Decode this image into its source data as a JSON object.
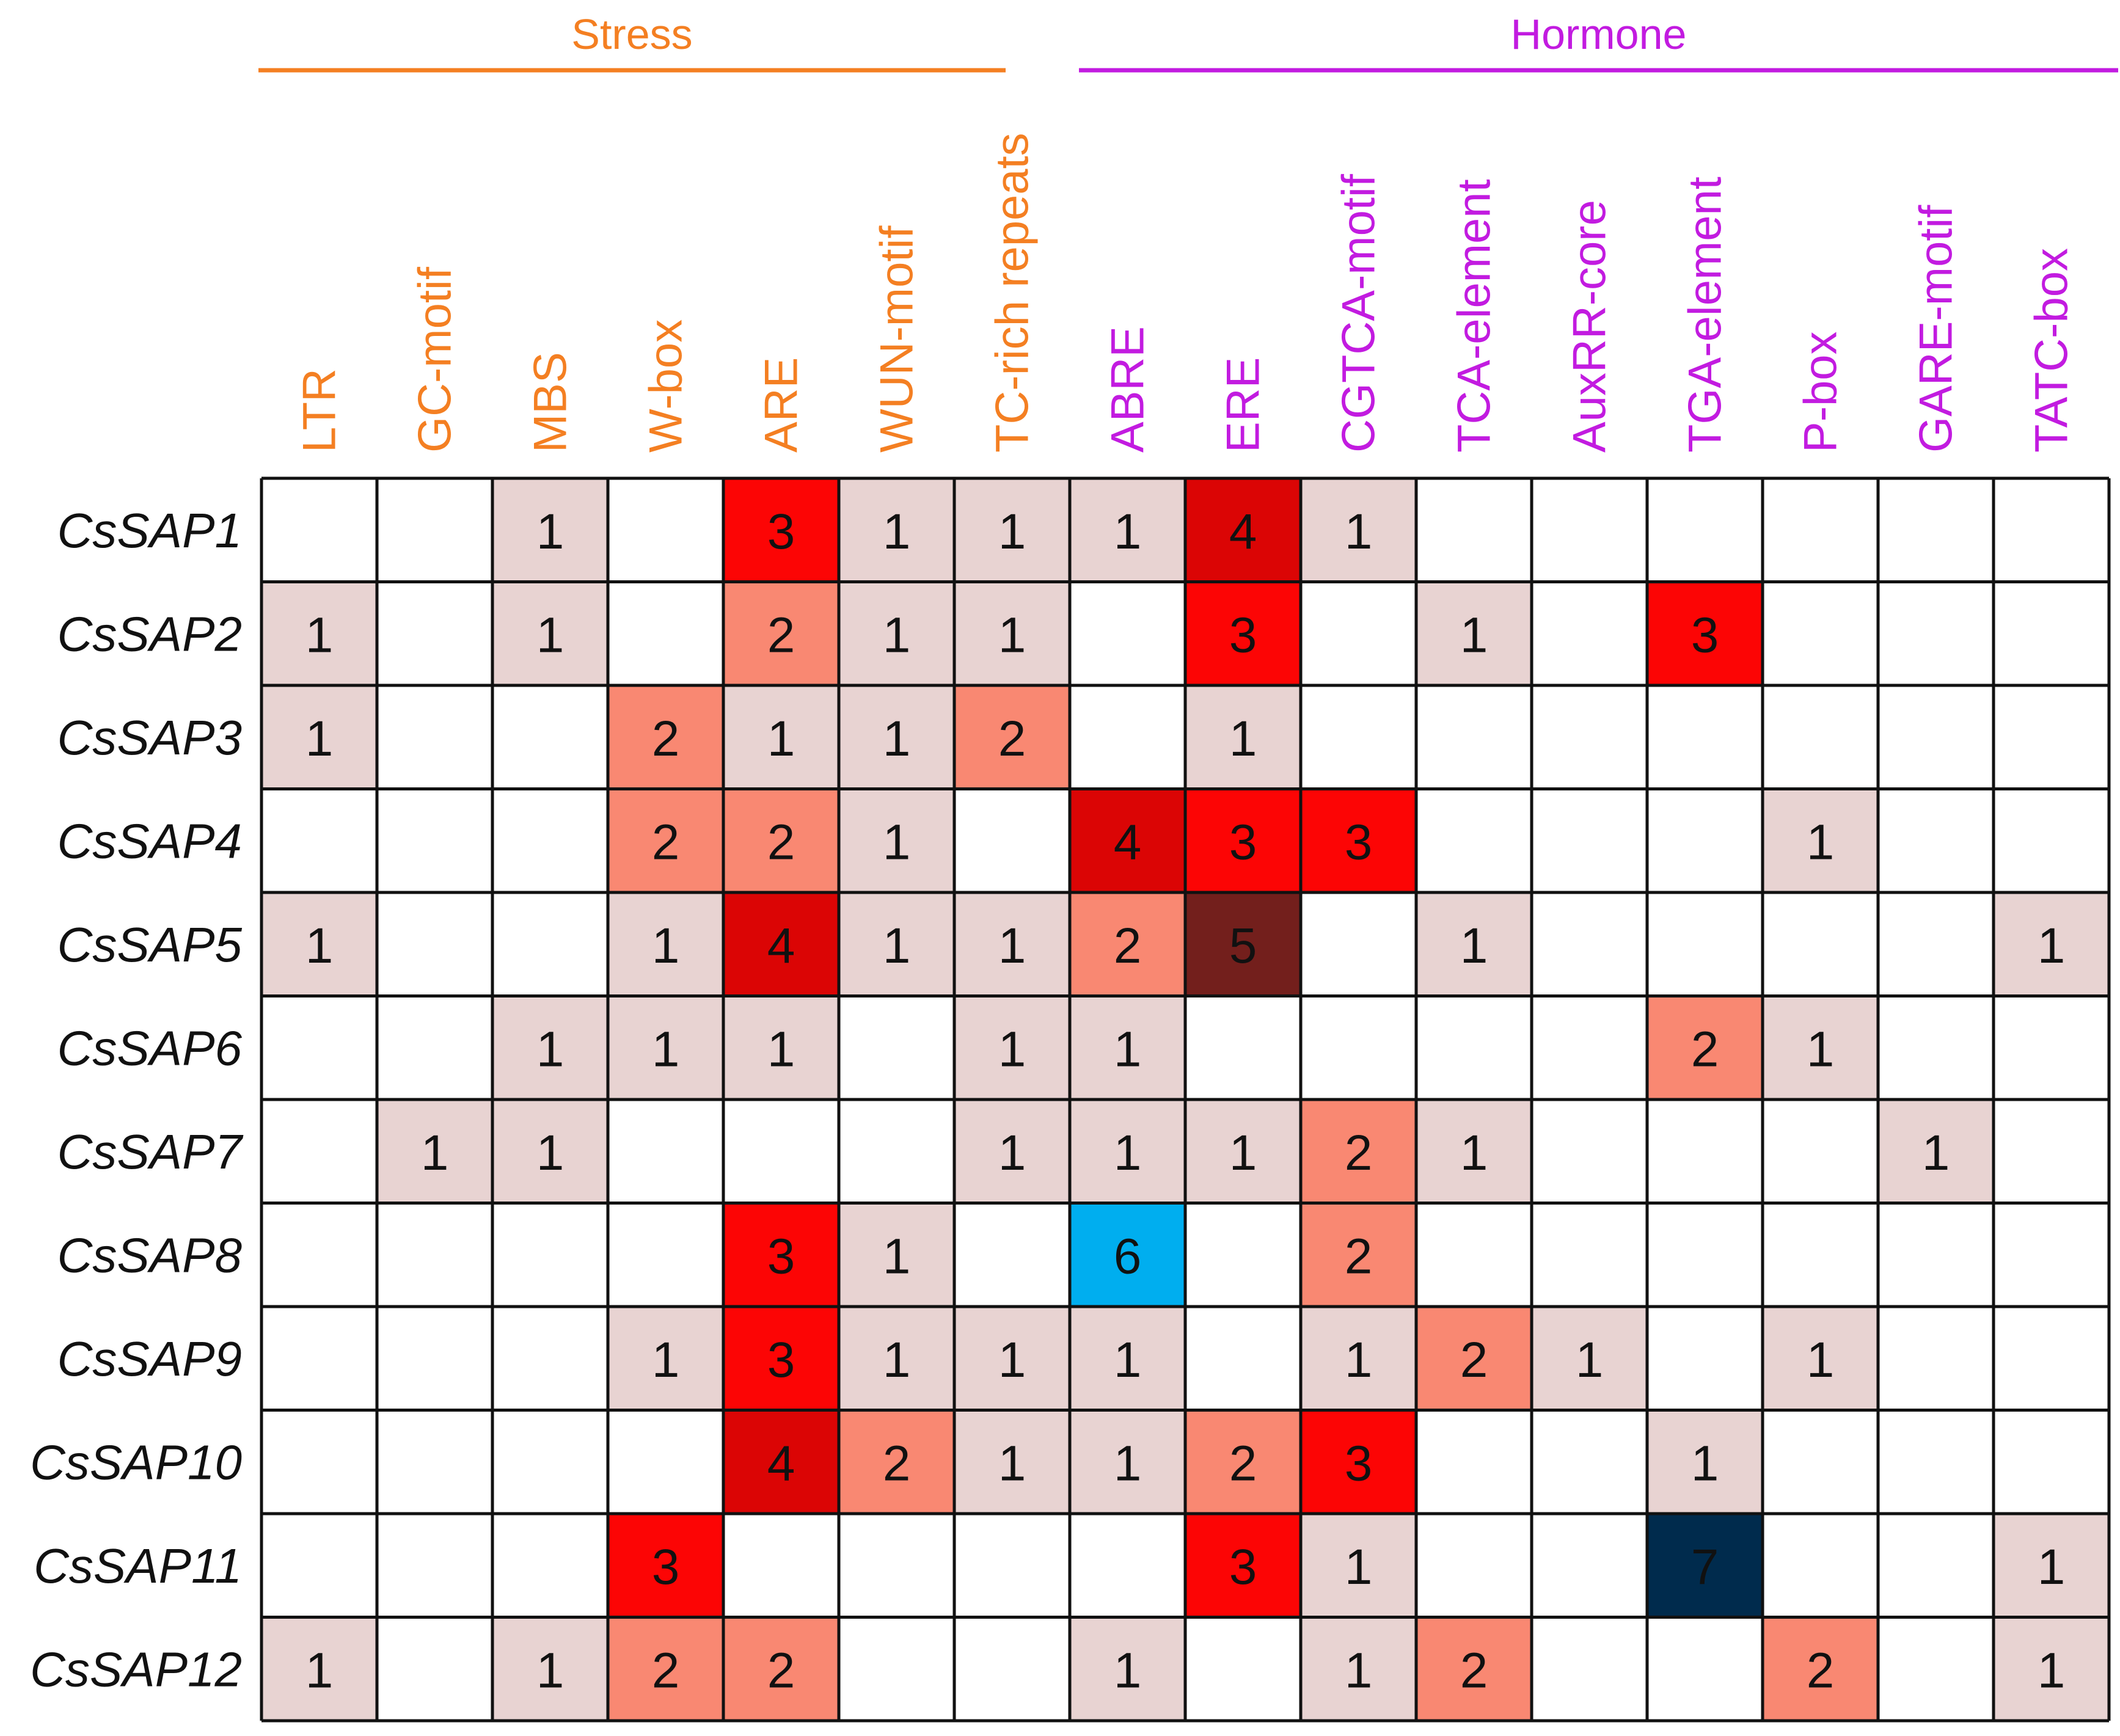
{
  "chart_data": {
    "type": "heatmap",
    "groups": [
      {
        "name": "Stress",
        "color": "#F47F22",
        "columns": [
          "LTR",
          "GC-motif",
          "MBS",
          "W-box",
          "ARE",
          "WUN-motif",
          "TC-rich repeats"
        ]
      },
      {
        "name": "Hormone",
        "color": "#C21BE0",
        "columns": [
          "ABRE",
          "ERE",
          "CGTCA-motif",
          "TCA-element",
          "AuxRR-core",
          "TGA-element",
          "P-box",
          "GARE-motif",
          "TATC-box"
        ]
      }
    ],
    "columns": [
      "LTR",
      "GC-motif",
      "MBS",
      "W-box",
      "ARE",
      "WUN-motif",
      "TC-rich repeats",
      "ABRE",
      "ERE",
      "CGTCA-motif",
      "TCA-element",
      "AuxRR-core",
      "TGA-element",
      "P-box",
      "GARE-motif",
      "TATC-box"
    ],
    "rows": [
      "CsSAP1",
      "CsSAP2",
      "CsSAP3",
      "CsSAP4",
      "CsSAP5",
      "CsSAP6",
      "CsSAP7",
      "CsSAP8",
      "CsSAP9",
      "CsSAP10",
      "CsSAP11",
      "CsSAP12"
    ],
    "values": [
      [
        0,
        0,
        1,
        0,
        3,
        1,
        1,
        1,
        4,
        1,
        0,
        0,
        0,
        0,
        0,
        0
      ],
      [
        1,
        0,
        1,
        0,
        2,
        1,
        1,
        0,
        3,
        0,
        1,
        0,
        3,
        0,
        0,
        0
      ],
      [
        1,
        0,
        0,
        2,
        1,
        1,
        2,
        0,
        1,
        0,
        0,
        0,
        0,
        0,
        0,
        0
      ],
      [
        0,
        0,
        0,
        2,
        2,
        1,
        0,
        4,
        3,
        3,
        0,
        0,
        0,
        1,
        0,
        0
      ],
      [
        1,
        0,
        0,
        1,
        4,
        1,
        1,
        2,
        5,
        0,
        1,
        0,
        0,
        0,
        0,
        1
      ],
      [
        0,
        0,
        1,
        1,
        1,
        0,
        1,
        1,
        0,
        0,
        0,
        0,
        2,
        1,
        0,
        0
      ],
      [
        0,
        1,
        1,
        0,
        0,
        0,
        1,
        1,
        1,
        2,
        1,
        0,
        0,
        0,
        1,
        0
      ],
      [
        0,
        0,
        0,
        0,
        3,
        1,
        0,
        6,
        0,
        2,
        0,
        0,
        0,
        0,
        0,
        0
      ],
      [
        0,
        0,
        0,
        1,
        3,
        1,
        1,
        1,
        0,
        1,
        2,
        1,
        0,
        1,
        0,
        0
      ],
      [
        0,
        0,
        0,
        0,
        4,
        2,
        1,
        1,
        2,
        3,
        0,
        0,
        1,
        0,
        0,
        0
      ],
      [
        0,
        0,
        0,
        3,
        0,
        0,
        0,
        0,
        3,
        1,
        0,
        0,
        7,
        0,
        0,
        1
      ],
      [
        1,
        0,
        1,
        2,
        2,
        0,
        0,
        1,
        0,
        1,
        2,
        0,
        0,
        2,
        0,
        1
      ]
    ],
    "color_scale": {
      "1": "#E8D3D2",
      "2": "#F98872",
      "3": "#FC0505",
      "4": "#DB0505",
      "5": "#731F1C",
      "6": "#00AEEF",
      "7": "#002B4D"
    },
    "empty_value": 0
  }
}
